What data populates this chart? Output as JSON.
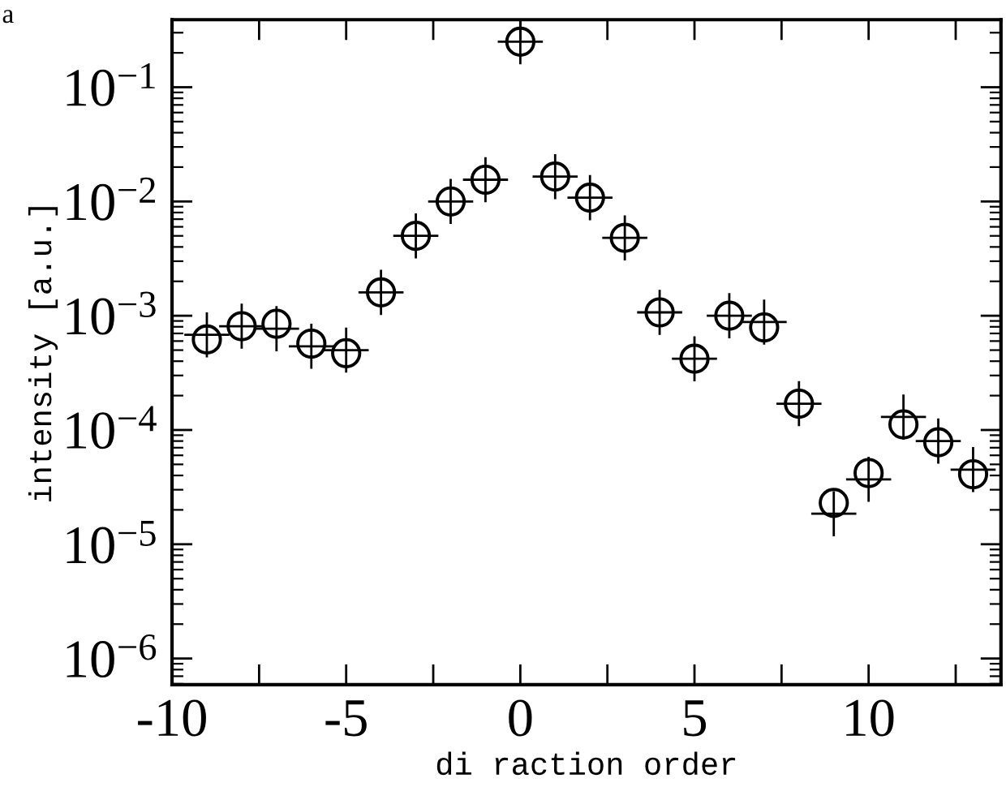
{
  "chart_data": {
    "type": "scatter",
    "xlabel": "di raction order",
    "ylabel": "intensity [a.u.]",
    "annotations": [
      "a"
    ],
    "x": [
      -9,
      -8,
      -7,
      -6,
      -5,
      -4,
      -3,
      -2,
      -1,
      0,
      1,
      2,
      3,
      4,
      5,
      6,
      7,
      8,
      9,
      10,
      11,
      12,
      13
    ],
    "series": [
      {
        "color": "#000000",
        "marker": "circle",
        "values": [
          0.00062,
          0.00081,
          0.00085,
          0.00057,
          0.00047,
          0.0016,
          0.005,
          0.01,
          0.0155,
          0.25,
          0.0165,
          0.0108,
          0.0048,
          0.00107,
          0.00042,
          0.001,
          0.00079,
          0.00017,
          2.3e-05,
          4.2e-05,
          0.000112,
          7.8e-05,
          4.1e-05
        ]
      },
      {
        "color": "#000000",
        "marker": "cross",
        "values": [
          0.00068,
          0.00081,
          0.00077,
          0.00054,
          0.0005,
          0.0016,
          0.005,
          0.01,
          0.0155,
          0.25,
          0.0165,
          0.0108,
          0.0048,
          0.00107,
          0.00042,
          0.001,
          0.00088,
          0.00017,
          1.85e-05,
          3.7e-05,
          0.00013,
          8e-05,
          4.5e-05
        ]
      }
    ],
    "log": "y",
    "xlim": [
      -10,
      13.8
    ],
    "ylim": [
      5.9e-07,
      0.39
    ],
    "xticks": [
      -10,
      {
        "value": -7.5,
        "label": null
      },
      -5,
      {
        "value": -2.5,
        "label": null
      },
      0,
      {
        "value": 2.5,
        "label": null
      },
      5,
      {
        "value": 7.5,
        "label": null
      },
      10,
      {
        "value": 12.5,
        "label": null
      }
    ],
    "yticks": [
      {
        "value": 1e-06,
        "label": "10$^{−6}$"
      },
      {
        "value": 1e-05,
        "label": "10$^{−5}$"
      },
      {
        "value": 0.0001,
        "label": "10$^{−4}$"
      },
      {
        "value": 0.001,
        "label": "10$^{−3}$"
      },
      {
        "value": 0.01,
        "label": "10$^{−2}$"
      },
      {
        "value": 0.1,
        "label": "10$^{−1}$"
      }
    ],
    "grid": false,
    "legend": false
  }
}
